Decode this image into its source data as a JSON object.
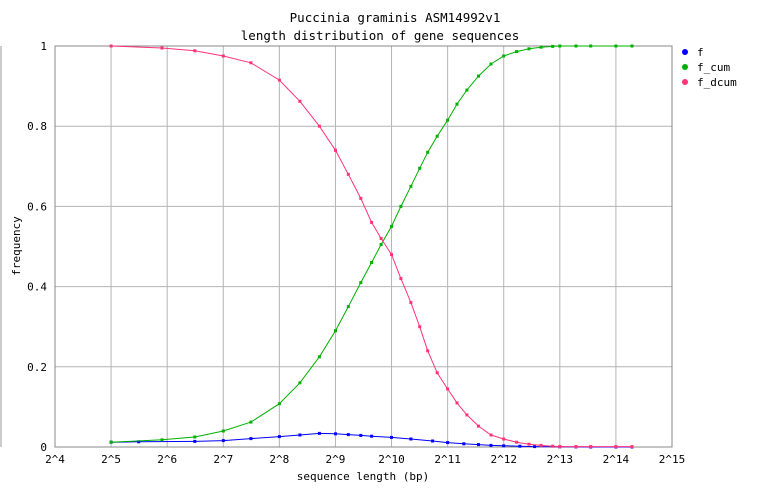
{
  "chart_data": {
    "type": "line",
    "title_lines": [
      "Puccinia graminis ASM14992v1",
      "length distribution of gene sequences"
    ],
    "xlabel": "sequence length (bp)",
    "ylabel": "frequency",
    "x_scale": "log2",
    "xlim": [
      16,
      32768
    ],
    "ylim": [
      0,
      1
    ],
    "x_ticks": [
      {
        "value": 16,
        "label": "2^4"
      },
      {
        "value": 32,
        "label": "2^5"
      },
      {
        "value": 64,
        "label": "2^6"
      },
      {
        "value": 128,
        "label": "2^7"
      },
      {
        "value": 256,
        "label": "2^8"
      },
      {
        "value": 512,
        "label": "2^9"
      },
      {
        "value": 1024,
        "label": "2^10"
      },
      {
        "value": 2048,
        "label": "2^11"
      },
      {
        "value": 4096,
        "label": "2^12"
      },
      {
        "value": 8192,
        "label": "2^13"
      },
      {
        "value": 16384,
        "label": "2^14"
      },
      {
        "value": 32768,
        "label": "2^15"
      }
    ],
    "y_ticks": [
      {
        "value": 0,
        "label": "0"
      },
      {
        "value": 0.2,
        "label": "0.2"
      },
      {
        "value": 0.4,
        "label": "0.4"
      },
      {
        "value": 0.6,
        "label": "0.6"
      },
      {
        "value": 0.8,
        "label": "0.8"
      },
      {
        "value": 1,
        "label": "1"
      }
    ],
    "grid": true,
    "legend_position": "right",
    "series": [
      {
        "name": "f",
        "color": "#0000ff",
        "x": [
          32,
          45,
          90,
          128,
          180,
          256,
          330,
          420,
          512,
          600,
          700,
          800,
          1024,
          1300,
          1700,
          2048,
          2500,
          3000,
          3500,
          4096,
          5000,
          6000,
          8192,
          10000,
          12000,
          16384,
          20000
        ],
        "y": [
          0.012,
          0.013,
          0.014,
          0.016,
          0.021,
          0.026,
          0.03,
          0.034,
          0.033,
          0.031,
          0.029,
          0.027,
          0.024,
          0.02,
          0.015,
          0.011,
          0.008,
          0.006,
          0.004,
          0.003,
          0.002,
          0.001,
          0.0005,
          0.0002,
          0.0001,
          0.0001,
          0.0001
        ]
      },
      {
        "name": "f_cum",
        "color": "#00b000",
        "x": [
          32,
          60,
          90,
          128,
          180,
          256,
          330,
          420,
          512,
          600,
          700,
          800,
          900,
          1024,
          1150,
          1300,
          1450,
          1600,
          1800,
          2048,
          2300,
          2600,
          3000,
          3500,
          4096,
          4800,
          5600,
          6500,
          7500,
          8192,
          10000,
          12000,
          16384,
          20000
        ],
        "y": [
          0.012,
          0.018,
          0.025,
          0.04,
          0.062,
          0.108,
          0.16,
          0.225,
          0.29,
          0.35,
          0.41,
          0.46,
          0.505,
          0.55,
          0.6,
          0.65,
          0.695,
          0.735,
          0.775,
          0.815,
          0.855,
          0.89,
          0.925,
          0.955,
          0.975,
          0.986,
          0.993,
          0.997,
          0.999,
          1.0,
          1.0,
          1.0,
          1.0,
          1.0
        ]
      },
      {
        "name": "f_dcum",
        "color": "#ff3377",
        "x": [
          32,
          60,
          90,
          128,
          180,
          256,
          330,
          420,
          512,
          600,
          700,
          800,
          900,
          1024,
          1150,
          1300,
          1450,
          1600,
          1800,
          2048,
          2300,
          2600,
          3000,
          3500,
          4096,
          4800,
          5600,
          6500,
          7500,
          8192,
          10000,
          12000,
          16384,
          20000
        ],
        "y": [
          1.0,
          0.995,
          0.988,
          0.975,
          0.958,
          0.915,
          0.862,
          0.8,
          0.74,
          0.68,
          0.62,
          0.56,
          0.52,
          0.48,
          0.42,
          0.36,
          0.3,
          0.24,
          0.185,
          0.145,
          0.11,
          0.08,
          0.052,
          0.03,
          0.02,
          0.012,
          0.007,
          0.004,
          0.002,
          0.001,
          0.001,
          0.001,
          0.001,
          0.001
        ]
      }
    ]
  }
}
